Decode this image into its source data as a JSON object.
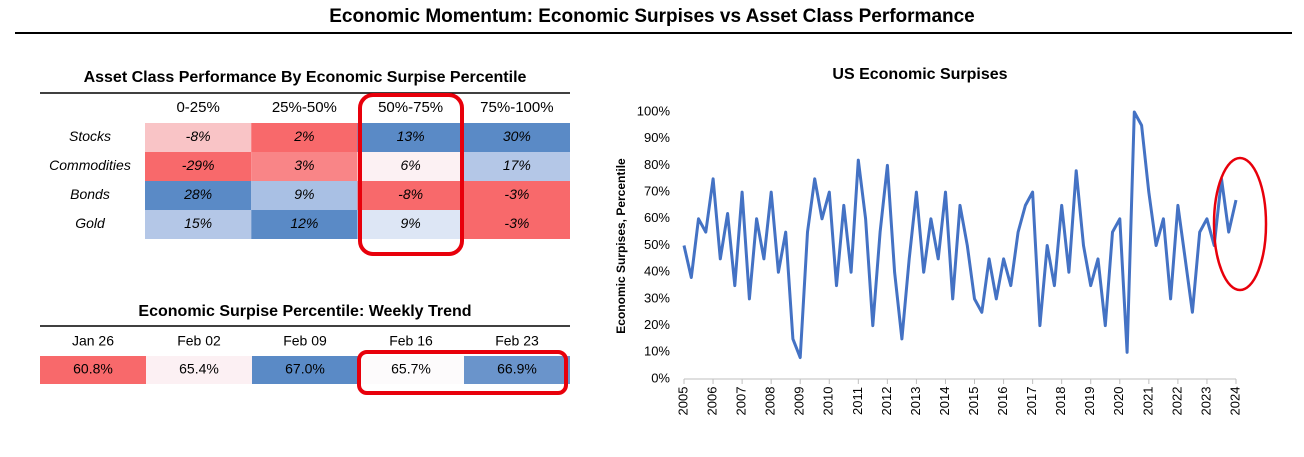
{
  "header": {
    "title": "Economic Momentum: Economic Surpises vs Asset Class Performance"
  },
  "performance_table": {
    "title": "Asset Class Performance By Economic Surpise Percentile",
    "columns": [
      "0-25%",
      "25%-50%",
      "50%-75%",
      "75%-100%"
    ],
    "rows": [
      {
        "label": "Stocks",
        "cells": [
          "-8%",
          "2%",
          "13%",
          "30%"
        ],
        "colors": [
          "#f9c4c6",
          "#f8696b",
          "#5a8ac6",
          "#5a8ac6"
        ]
      },
      {
        "label": "Commodities",
        "cells": [
          "-29%",
          "3%",
          "6%",
          "17%"
        ],
        "colors": [
          "#f8696b",
          "#f98587",
          "#fcf1f3",
          "#b4c7e7"
        ]
      },
      {
        "label": "Bonds",
        "cells": [
          "28%",
          "9%",
          "-8%",
          "-3%"
        ],
        "colors": [
          "#5a8ac6",
          "#a9c0e4",
          "#f8696b",
          "#f8696b"
        ]
      },
      {
        "label": "Gold",
        "cells": [
          "15%",
          "12%",
          "9%",
          "-3%"
        ],
        "colors": [
          "#b4c7e7",
          "#5a8ac6",
          "#dde6f5",
          "#f8696b"
        ]
      }
    ]
  },
  "trend_table": {
    "title": "Economic Surpise Percentile: Weekly Trend",
    "columns": [
      "Jan 26",
      "Feb 02",
      "Feb 09",
      "Feb 16",
      "Feb 23"
    ],
    "values": [
      "60.8%",
      "65.4%",
      "67.0%",
      "65.7%",
      "66.9%"
    ],
    "colors": [
      "#f8696b",
      "#fcf0f3",
      "#5a8ac6",
      "#fdfbfc",
      "#6a94cb"
    ]
  },
  "chart_data": {
    "type": "line",
    "title": "US Economic Surpises",
    "y_label": "Economic Surpises, Percentile",
    "color": "#4472c4",
    "x": [
      2005,
      2005.25,
      2005.5,
      2005.75,
      2006,
      2006.25,
      2006.5,
      2006.75,
      2007,
      2007.25,
      2007.5,
      2007.75,
      2008,
      2008.25,
      2008.5,
      2008.75,
      2009,
      2009.25,
      2009.5,
      2009.75,
      2010,
      2010.25,
      2010.5,
      2010.75,
      2011,
      2011.25,
      2011.5,
      2011.75,
      2012,
      2012.25,
      2012.5,
      2012.75,
      2013,
      2013.25,
      2013.5,
      2013.75,
      2014,
      2014.25,
      2014.5,
      2014.75,
      2015,
      2015.25,
      2015.5,
      2015.75,
      2016,
      2016.25,
      2016.5,
      2016.75,
      2017,
      2017.25,
      2017.5,
      2017.75,
      2018,
      2018.25,
      2018.5,
      2018.75,
      2019,
      2019.25,
      2019.5,
      2019.75,
      2020,
      2020.25,
      2020.5,
      2020.75,
      2021,
      2021.25,
      2021.5,
      2021.75,
      2022,
      2022.25,
      2022.5,
      2022.75,
      2023,
      2023.25,
      2023.5,
      2023.75,
      2024
    ],
    "values": [
      50,
      38,
      60,
      55,
      75,
      45,
      62,
      35,
      70,
      30,
      60,
      45,
      70,
      40,
      55,
      15,
      8,
      55,
      75,
      60,
      70,
      35,
      65,
      40,
      82,
      60,
      20,
      55,
      80,
      40,
      15,
      45,
      70,
      40,
      60,
      45,
      70,
      30,
      65,
      50,
      30,
      25,
      45,
      30,
      45,
      35,
      55,
      65,
      70,
      20,
      50,
      35,
      65,
      40,
      78,
      50,
      35,
      45,
      20,
      55,
      60,
      10,
      100,
      95,
      70,
      50,
      60,
      30,
      65,
      45,
      25,
      55,
      60,
      50,
      75,
      55,
      67
    ],
    "xlim": [
      2005,
      2024
    ],
    "xticks": [
      2005,
      2006,
      2007,
      2008,
      2009,
      2010,
      2011,
      2012,
      2013,
      2014,
      2015,
      2016,
      2017,
      2018,
      2019,
      2020,
      2021,
      2022,
      2023,
      2024
    ],
    "ylim": [
      0,
      100
    ],
    "yticks": [
      {
        "value": 0,
        "label": "0%"
      },
      {
        "value": 10,
        "label": "10%"
      },
      {
        "value": 20,
        "label": "20%"
      },
      {
        "value": 30,
        "label": "30%"
      },
      {
        "value": 40,
        "label": "40%"
      },
      {
        "value": 50,
        "label": "50%"
      },
      {
        "value": 60,
        "label": "60%"
      },
      {
        "value": 70,
        "label": "70%"
      },
      {
        "value": 80,
        "label": "80%"
      },
      {
        "value": 90,
        "label": "90%"
      },
      {
        "value": 100,
        "label": "100%"
      }
    ],
    "grid": false
  }
}
